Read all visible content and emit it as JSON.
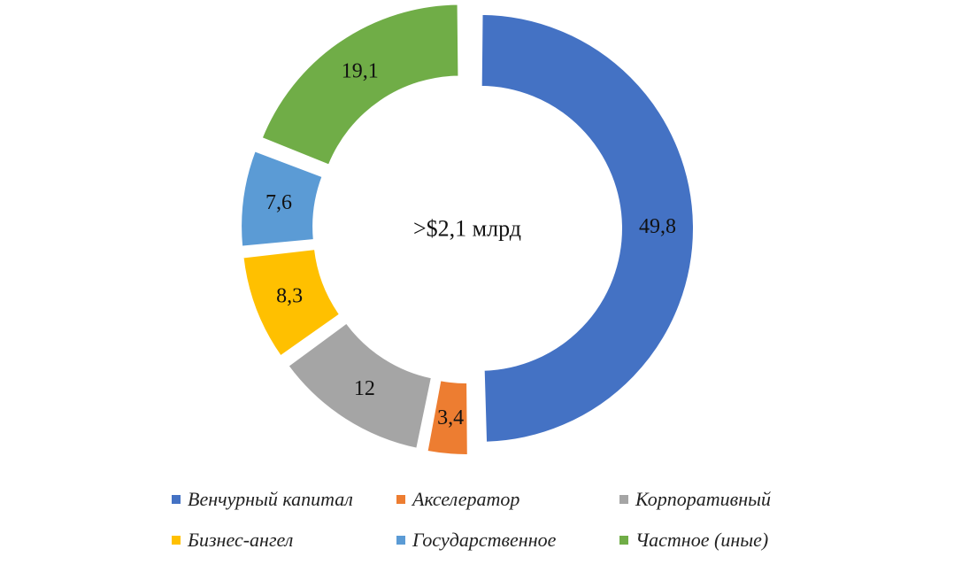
{
  "chart_data": {
    "type": "donut",
    "center_label": ">$2,1 млрд",
    "series": [
      {
        "name": "Венчурный капитал",
        "value": 49.8,
        "label": "49,8",
        "color": "#4472C4"
      },
      {
        "name": "Акселератор",
        "value": 3.4,
        "label": "3,4",
        "color": "#ED7D31"
      },
      {
        "name": "Корпоративный",
        "value": 12,
        "label": "12",
        "color": "#A5A5A5"
      },
      {
        "name": "Бизнес-ангел",
        "value": 8.3,
        "label": "8,3",
        "color": "#FFC000"
      },
      {
        "name": "Государственное",
        "value": 7.6,
        "label": "7,6",
        "color": "#5B9BD5"
      },
      {
        "name": "Частное (иные)",
        "value": 19.1,
        "label": "19,1",
        "color": "#70AD47"
      }
    ],
    "legend_position": "bottom"
  }
}
